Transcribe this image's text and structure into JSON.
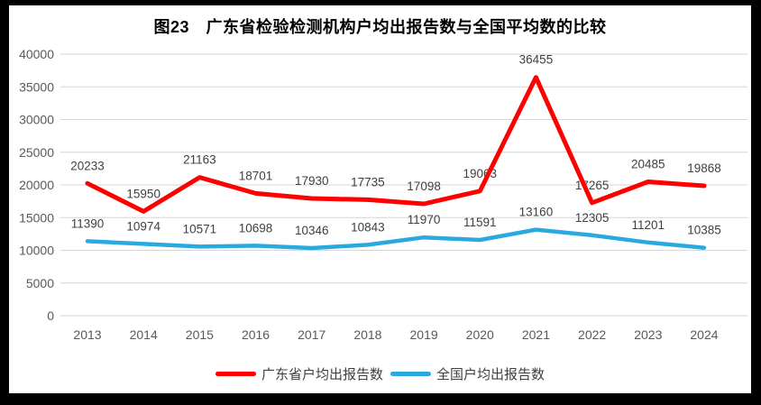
{
  "frame": {
    "border_color": "#000000",
    "chart_background": "#FFFFFF"
  },
  "chart_data": {
    "type": "line",
    "title": "图23　广东省检验检测机构户均出报告数与全国平均数的比较",
    "categories": [
      "2013",
      "2014",
      "2015",
      "2016",
      "2017",
      "2018",
      "2019",
      "2020",
      "2021",
      "2022",
      "2023",
      "2024"
    ],
    "series": [
      {
        "name": "广东省户均出报告数",
        "color": "#FE0000",
        "values": [
          20233,
          15950,
          21163,
          18701,
          17930,
          17735,
          17098,
          19063,
          36455,
          17265,
          20485,
          19868
        ]
      },
      {
        "name": "全国户均出报告数",
        "color": "#29A9E0",
        "values": [
          11390,
          10974,
          10571,
          10698,
          10346,
          10843,
          11970,
          11591,
          13160,
          12305,
          11201,
          10385
        ]
      }
    ],
    "xlabel": "",
    "ylabel": "",
    "ylim": [
      0,
      40000
    ],
    "ytick_step": 5000,
    "ytick_labels": [
      "0",
      "5000",
      "10000",
      "15000",
      "20000",
      "25000",
      "30000",
      "35000",
      "40000"
    ],
    "grid": true,
    "gridline_color": "#D6D6D6",
    "axis_tick_color": "#595959",
    "data_label_color": "#404040",
    "data_labels_shown": true,
    "legend_position": "bottom"
  }
}
